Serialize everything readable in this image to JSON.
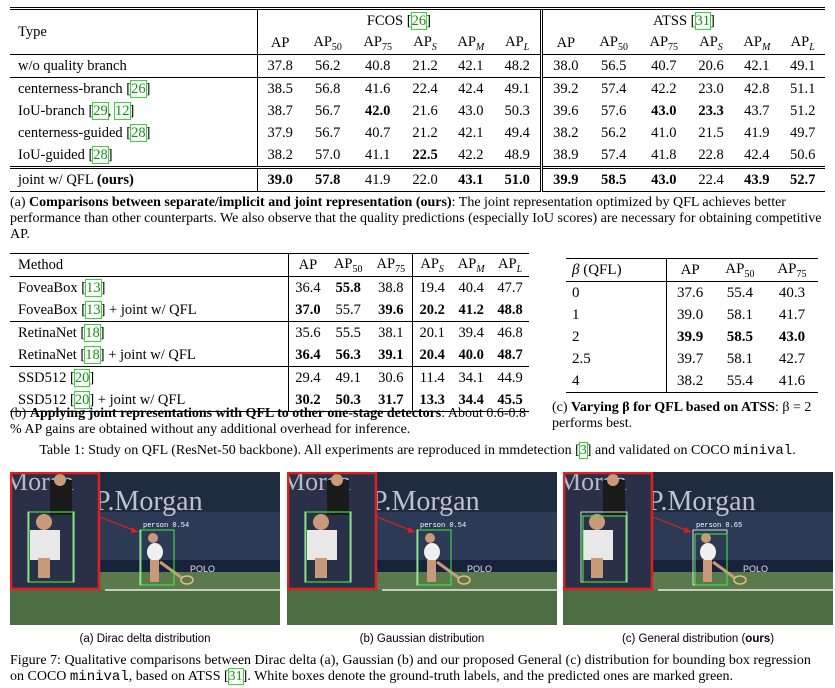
{
  "table1a": {
    "header_type": "Type",
    "group_fcos": "FCOS",
    "group_fcos_cite": "26",
    "group_atss": "ATSS",
    "group_atss_cite": "31",
    "metrics": [
      "AP",
      "AP",
      "AP",
      "AP",
      "AP",
      "AP"
    ],
    "metric_subs": [
      "",
      "50",
      "75",
      "S",
      "M",
      "L"
    ],
    "rows": [
      {
        "label": "w/o quality branch",
        "cites": [],
        "fcos": [
          "37.8",
          "56.2",
          "40.8",
          "21.2",
          "42.1",
          "48.2"
        ],
        "atss": [
          "38.0",
          "56.5",
          "40.7",
          "20.6",
          "42.1",
          "49.1"
        ]
      },
      {
        "label": "centerness-branch",
        "cites": [
          "26"
        ],
        "fcos": [
          "38.5",
          "56.8",
          "41.6",
          "22.4",
          "42.4",
          "49.1"
        ],
        "atss": [
          "39.2",
          "57.4",
          "42.2",
          "23.0",
          "42.8",
          "51.1"
        ]
      },
      {
        "label": "IoU-branch",
        "cites": [
          "29",
          "12"
        ],
        "fcos": [
          "38.7",
          "56.7",
          "42.0",
          "21.6",
          "43.0",
          "50.3"
        ],
        "atss": [
          "39.6",
          "57.6",
          "43.0",
          "23.3",
          "43.7",
          "51.2"
        ]
      },
      {
        "label": "centerness-guided",
        "cites": [
          "28"
        ],
        "fcos": [
          "37.9",
          "56.7",
          "40.7",
          "21.2",
          "42.1",
          "49.4"
        ],
        "atss": [
          "38.2",
          "56.2",
          "41.0",
          "21.5",
          "41.9",
          "49.7"
        ]
      },
      {
        "label": "IoU-guided",
        "cites": [
          "28"
        ],
        "fcos": [
          "38.2",
          "57.0",
          "41.1",
          "22.5",
          "42.2",
          "48.9"
        ],
        "atss": [
          "38.9",
          "57.4",
          "41.8",
          "22.8",
          "42.4",
          "50.6"
        ]
      },
      {
        "label": "joint w/ QFL",
        "label_bold": "(ours)",
        "cites": [],
        "fcos": [
          "39.0",
          "57.8",
          "41.9",
          "22.0",
          "43.1",
          "51.0"
        ],
        "atss": [
          "39.9",
          "58.5",
          "43.0",
          "22.4",
          "43.9",
          "52.7"
        ]
      }
    ],
    "caption_prefix": "(a) ",
    "caption_bold": "Comparisons between separate/implicit and joint representation (ours)",
    "caption_text": ": The joint representation optimized by QFL achieves better performance than other counterparts. We also observe that the quality predictions (especially IoU scores) are necessary for obtaining competitive AP."
  },
  "table1b": {
    "header_method": "Method",
    "metrics": [
      "AP",
      "AP",
      "AP",
      "AP",
      "AP",
      "AP"
    ],
    "metric_subs": [
      "",
      "50",
      "75",
      "S",
      "M",
      "L"
    ],
    "rows": [
      {
        "name": "FoveaBox",
        "cite": "13",
        "suffix": "",
        "vals": [
          "36.4",
          "55.8",
          "38.8",
          "19.4",
          "40.4",
          "47.7"
        ]
      },
      {
        "name": "FoveaBox",
        "cite": "13",
        "suffix": " + joint w/ QFL",
        "vals": [
          "37.0",
          "55.7",
          "39.6",
          "20.2",
          "41.2",
          "48.8"
        ]
      },
      {
        "name": "RetinaNet",
        "cite": "18",
        "suffix": "",
        "vals": [
          "35.6",
          "55.5",
          "38.1",
          "20.1",
          "39.4",
          "46.8"
        ]
      },
      {
        "name": "RetinaNet",
        "cite": "18",
        "suffix": " + joint w/ QFL",
        "vals": [
          "36.4",
          "56.3",
          "39.1",
          "20.4",
          "40.0",
          "48.7"
        ]
      },
      {
        "name": "SSD512",
        "cite": "20",
        "suffix": "",
        "vals": [
          "29.4",
          "49.1",
          "30.6",
          "11.4",
          "34.1",
          "44.9"
        ]
      },
      {
        "name": "SSD512",
        "cite": "20",
        "suffix": " + joint w/ QFL",
        "vals": [
          "30.2",
          "50.3",
          "31.7",
          "13.3",
          "34.4",
          "45.5"
        ]
      }
    ],
    "caption_prefix": "(b) ",
    "caption_bold": "Applying joint representations with QFL to other one-stage detectors",
    "caption_text": ": About 0.6-0.8 % AP gains are obtained without any additional overhead for inference."
  },
  "table1c": {
    "header_beta": "β (QFL)",
    "metrics": [
      "AP",
      "AP",
      "AP"
    ],
    "metric_subs": [
      "",
      "50",
      "75"
    ],
    "rows": [
      {
        "beta": "0",
        "vals": [
          "37.6",
          "55.4",
          "40.3"
        ]
      },
      {
        "beta": "1",
        "vals": [
          "39.0",
          "58.1",
          "41.7"
        ]
      },
      {
        "beta": "2",
        "vals": [
          "39.9",
          "58.5",
          "43.0"
        ]
      },
      {
        "beta": "2.5",
        "vals": [
          "39.7",
          "58.1",
          "42.7"
        ]
      },
      {
        "beta": "4",
        "vals": [
          "38.2",
          "55.4",
          "41.6"
        ]
      }
    ],
    "caption_prefix": "(c) ",
    "caption_bold": "Varying β for QFL based on ATSS",
    "caption_text": ": β = 2 performs best."
  },
  "table1_caption": {
    "text": "Table 1: Study on QFL (ResNet-50 backbone). All experiments are reproduced in mmdetection [",
    "cite": "3",
    "text2": "] and validated on COCO ",
    "mono": "minival",
    "end": "."
  },
  "figure7": {
    "panels": [
      {
        "label": "(a) Dirac delta distribution",
        "det_label": "person|0.54"
      },
      {
        "label": "(b) Gaussian distribution",
        "det_label": "person|0.54"
      },
      {
        "label": "(c) General distribution (",
        "label_bold": "ours",
        "label_end": ")",
        "det_label": "person|0.65"
      }
    ],
    "bg_text": "P.Morgan",
    "bg_text2": "Morga",
    "polo": "POLO",
    "caption_text": "Figure 7: Qualitative comparisons between Dirac delta (a), Gaussian (b) and our proposed General (c) distribution for bounding box regression on COCO ",
    "caption_mono": "minival",
    "caption_text2": ", based on ATSS [",
    "caption_cite": "31",
    "caption_text3": "]. White boxes denote the ground-truth labels, and the predicted ones are marked green."
  },
  "colors": {
    "cite": "#159215",
    "pred_box": "#3cf03c",
    "zoom_border": "#e0201c"
  }
}
